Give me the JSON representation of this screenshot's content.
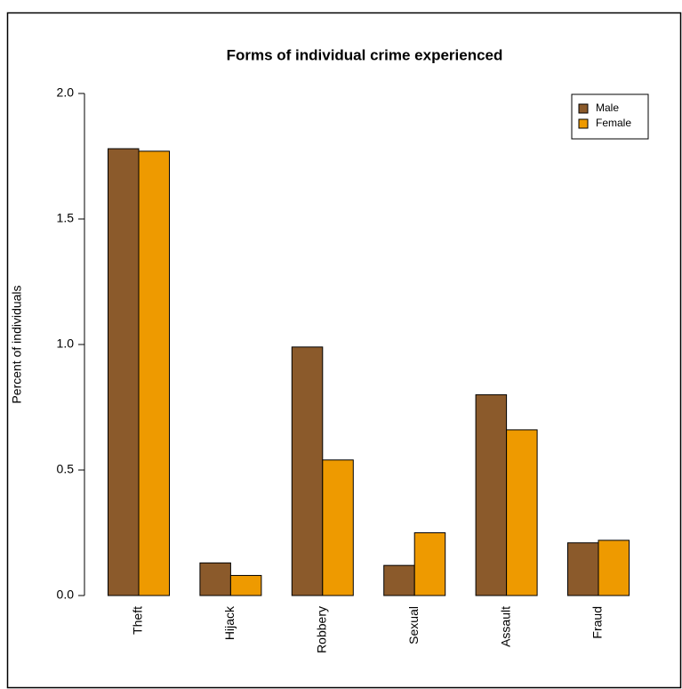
{
  "chart_data": {
    "type": "bar",
    "title": "Forms of individual crime experienced",
    "y_label": "Percent of individuals",
    "categories": [
      "Theft",
      "Hijack",
      "Robbery",
      "Sexual",
      "Assault",
      "Fraud"
    ],
    "series": [
      {
        "name": "Male",
        "color": "#8b5a2b",
        "values": [
          1.78,
          0.13,
          0.99,
          0.12,
          0.8,
          0.21
        ]
      },
      {
        "name": "Female",
        "color": "#ee9a00",
        "values": [
          1.77,
          0.08,
          0.54,
          0.25,
          0.66,
          0.22
        ]
      }
    ],
    "ylim": [
      0,
      2
    ],
    "yticks": [
      {
        "value": 0,
        "label": "0.0"
      },
      {
        "value": 0.5,
        "label": "0.5"
      },
      {
        "value": 1,
        "label": "1.0"
      },
      {
        "value": 1.5,
        "label": "1.5"
      },
      {
        "value": 2,
        "label": "2.0"
      }
    ],
    "legend": "top-right"
  }
}
